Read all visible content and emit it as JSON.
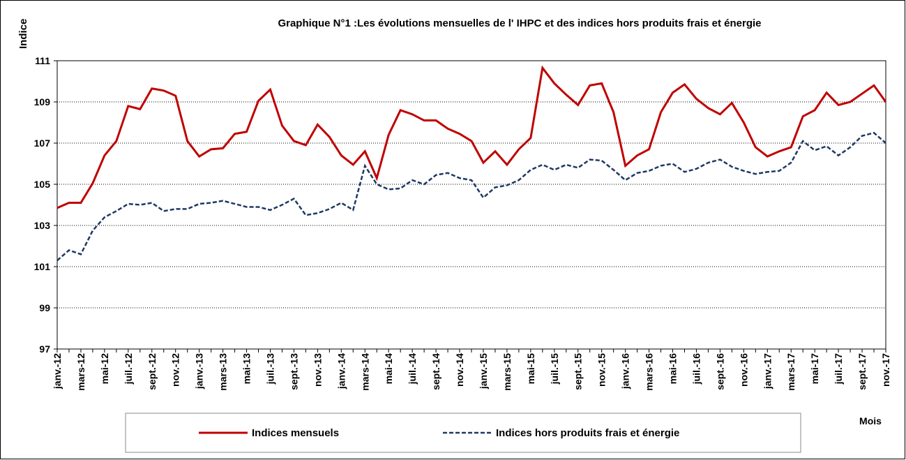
{
  "chart_data": {
    "type": "line",
    "title": "Graphique N°1 :Les évolutions mensuelles de l' IHPC et des indices  hors produits frais et énergie",
    "y_label": "Indice",
    "x_label": "Mois",
    "categories": [
      "janv.-12",
      null,
      "mars-12",
      null,
      "mai-12",
      null,
      "juil.-12",
      null,
      "sept.-12",
      null,
      "nov.-12",
      null,
      "janv.-13",
      null,
      "mars-13",
      null,
      "mai-13",
      null,
      "juil.-13",
      null,
      "sept.-13",
      null,
      "nov.-13",
      null,
      "janv.-14",
      null,
      "mars-14",
      null,
      "mai-14",
      null,
      "juil.-14",
      null,
      "sept.-14",
      null,
      "nov.-14",
      null,
      "janv.-15",
      null,
      "mars-15",
      null,
      "mai-15",
      null,
      "juil.-15",
      null,
      "sept.-15",
      null,
      "nov.-15",
      null,
      "janv.-16",
      null,
      "mars-16",
      null,
      "mai-16",
      null,
      "juil.-16",
      null,
      "sept.-16",
      null,
      "nov.-16",
      null,
      "janv.-17",
      null,
      "mars-17",
      null,
      "mai-17",
      null,
      "juil.-17",
      null,
      "sept.-17",
      null,
      "nov.-17"
    ],
    "series": [
      {
        "name": "Indices mensuels",
        "color": "#c00000",
        "dash": false,
        "values": [
          103.85,
          104.1,
          104.1,
          105.05,
          106.4,
          107.1,
          108.8,
          108.65,
          109.65,
          109.55,
          109.3,
          107.1,
          106.35,
          106.7,
          106.75,
          107.45,
          107.55,
          109.05,
          109.6,
          107.85,
          107.1,
          106.9,
          107.9,
          107.3,
          106.4,
          105.95,
          106.6,
          105.3,
          107.4,
          108.6,
          108.4,
          108.1,
          108.1,
          107.7,
          107.45,
          107.1,
          106.05,
          106.6,
          105.95,
          106.7,
          107.25,
          110.65,
          109.9,
          109.35,
          108.85,
          109.8,
          109.9,
          108.5,
          105.9,
          106.4,
          106.7,
          108.5,
          109.45,
          109.85,
          109.15,
          108.7,
          108.4,
          108.95,
          108.0,
          106.8,
          106.35,
          106.6,
          106.8,
          108.3,
          108.6,
          109.45,
          108.85,
          109.0,
          109.4,
          109.8,
          109.0
        ]
      },
      {
        "name": "Indices  hors produits frais et énergie",
        "color": "#1f3864",
        "dash": true,
        "values": [
          101.3,
          101.8,
          101.6,
          102.75,
          103.4,
          103.7,
          104.05,
          104.0,
          104.1,
          103.7,
          103.8,
          103.8,
          104.05,
          104.1,
          104.2,
          104.05,
          103.9,
          103.9,
          103.75,
          104.0,
          104.3,
          103.5,
          103.6,
          103.8,
          104.1,
          103.75,
          105.9,
          105.0,
          104.75,
          104.8,
          105.2,
          105.0,
          105.45,
          105.55,
          105.3,
          105.2,
          104.35,
          104.85,
          104.95,
          105.2,
          105.7,
          105.95,
          105.7,
          105.95,
          105.8,
          106.2,
          106.15,
          105.7,
          105.2,
          105.55,
          105.65,
          105.9,
          106.0,
          105.6,
          105.75,
          106.05,
          106.2,
          105.85,
          105.65,
          105.5,
          105.6,
          105.65,
          106.05,
          107.1,
          106.65,
          106.85,
          106.4,
          106.8,
          107.35,
          107.5,
          107.0
        ]
      }
    ],
    "ylim": [
      97,
      111
    ],
    "yticks": [
      97,
      99,
      101,
      103,
      105,
      107,
      109,
      111
    ],
    "grid": true,
    "legend": "bottom"
  }
}
